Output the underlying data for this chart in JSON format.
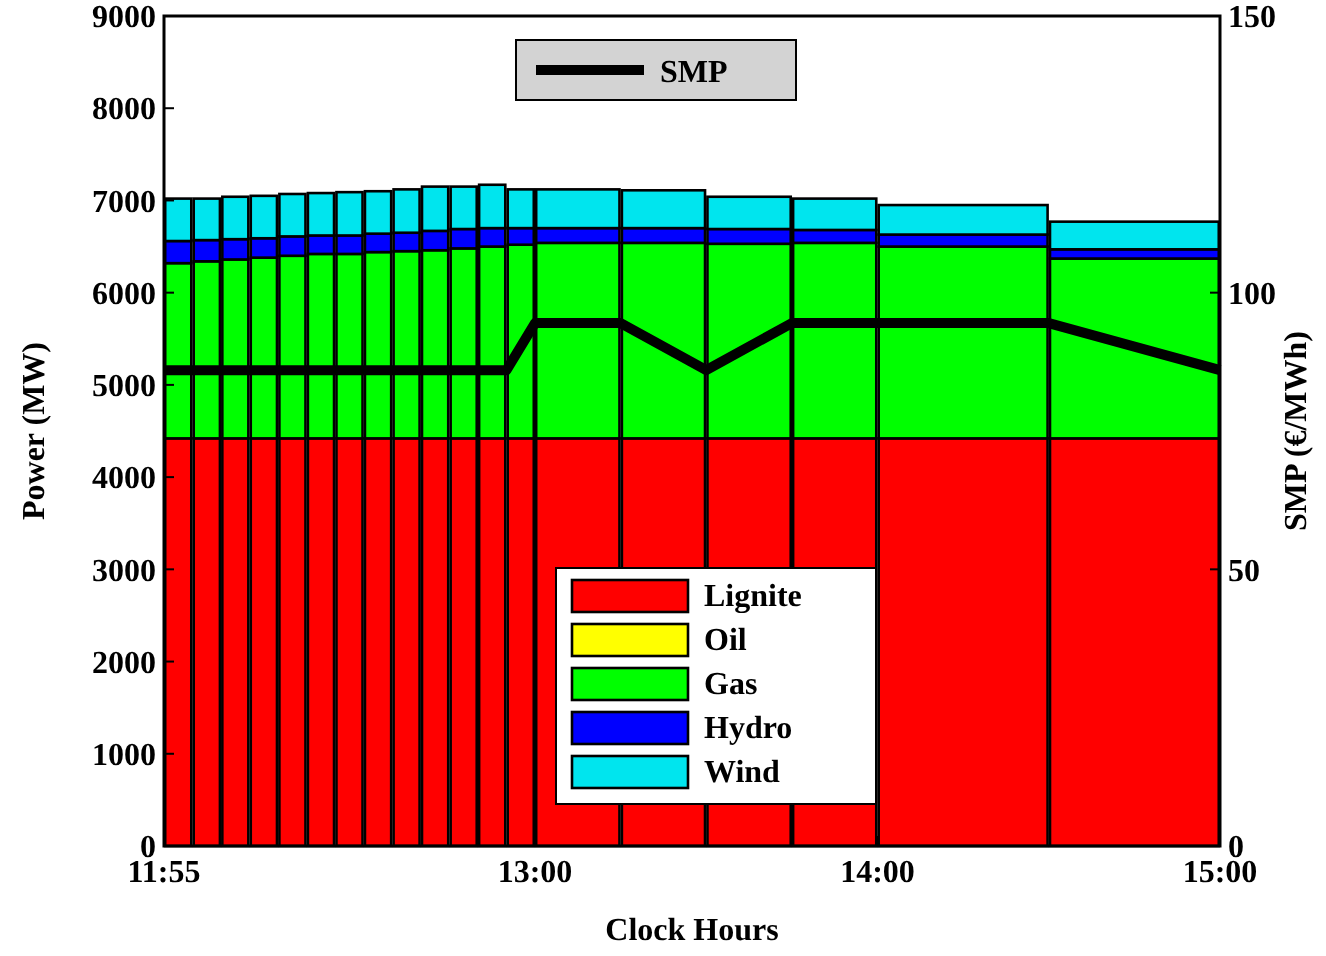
{
  "chart_data": {
    "type": "bar",
    "stacked": true,
    "xlabel": "Clock Hours",
    "ylabel": "Power (MW)",
    "y2label": "SMP (€/MWh)",
    "x": [
      11.9583,
      12.0417,
      12.125,
      12.2083,
      12.2917,
      12.375,
      12.4583,
      12.5417,
      12.625,
      12.7083,
      12.7917,
      12.875,
      12.9583,
      13.125,
      13.375,
      13.625,
      13.875,
      14.25,
      14.75
    ],
    "xlim": [
      11.9167,
      15
    ],
    "xticks": [
      {
        "value": 11.9167,
        "label": "11:55"
      },
      {
        "value": 13,
        "label": "13:00"
      },
      {
        "value": 14,
        "label": "14:00"
      },
      {
        "value": 15,
        "label": "15:00"
      }
    ],
    "ylim": [
      0,
      9000
    ],
    "yticks": [
      0,
      1000,
      2000,
      3000,
      4000,
      5000,
      6000,
      7000,
      8000,
      9000
    ],
    "y2lim": [
      0,
      150
    ],
    "y2ticks": [
      0,
      50,
      100,
      150
    ],
    "legend": "center",
    "grid": false,
    "series": [
      {
        "name": "Lignite",
        "color": "#ff0000",
        "values": [
          4420,
          4420,
          4420,
          4420,
          4420,
          4420,
          4420,
          4420,
          4420,
          4420,
          4420,
          4420,
          4420,
          4420,
          4420,
          4420,
          4420,
          4420,
          4420
        ]
      },
      {
        "name": "Oil",
        "color": "#ffff00",
        "values": [
          0,
          0,
          0,
          0,
          0,
          0,
          0,
          0,
          0,
          0,
          0,
          0,
          0,
          0,
          0,
          0,
          0,
          0,
          0
        ]
      },
      {
        "name": "Gas",
        "color": "#00ff00",
        "values": [
          1900,
          1920,
          1940,
          1960,
          1980,
          2000,
          2000,
          2020,
          2030,
          2040,
          2060,
          2080,
          2100,
          2120,
          2120,
          2110,
          2120,
          2080,
          1950
        ]
      },
      {
        "name": "Hydro",
        "color": "#0000ff",
        "values": [
          240,
          230,
          220,
          210,
          210,
          200,
          200,
          200,
          200,
          210,
          210,
          200,
          180,
          160,
          160,
          160,
          140,
          130,
          100
        ]
      },
      {
        "name": "Wind",
        "color": "#00e5ee",
        "values": [
          460,
          450,
          460,
          460,
          460,
          460,
          470,
          460,
          470,
          480,
          460,
          470,
          420,
          420,
          410,
          350,
          340,
          320,
          300
        ]
      },
      {
        "name": "SMP",
        "type": "line",
        "axis": "y2",
        "color": "#000000",
        "x": [
          11.9167,
          12.9167,
          13,
          13.25,
          13.5,
          13.75,
          14,
          14.5,
          15
        ],
        "values": [
          86,
          86,
          94.5,
          94.5,
          86,
          94.5,
          94.5,
          94.5,
          86
        ]
      }
    ]
  }
}
